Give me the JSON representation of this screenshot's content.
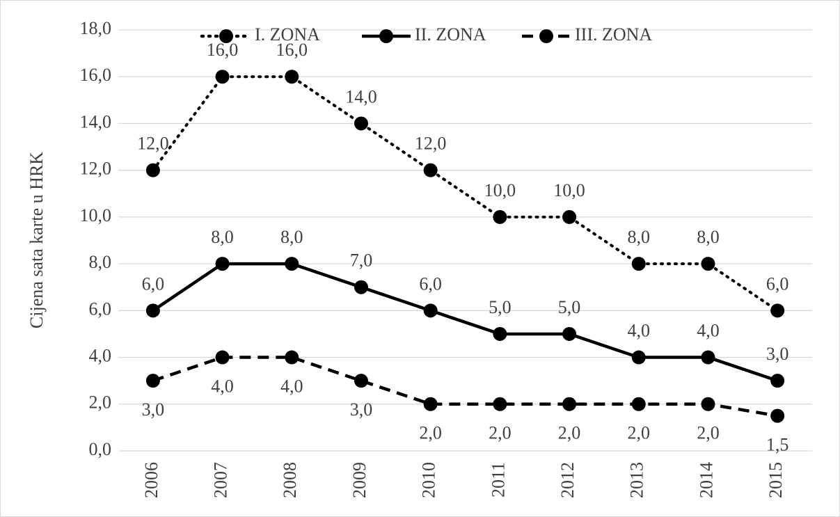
{
  "chart_data": {
    "type": "line",
    "ylabel": "Cijena sata karte u HRK",
    "categories": [
      "2006",
      "2007",
      "2008",
      "2009",
      "2010",
      "2011",
      "2012",
      "2013",
      "2014",
      "2015"
    ],
    "series": [
      {
        "name": "I. ZONA",
        "color": "#000000",
        "line_style": "dotted",
        "label_position": "above",
        "values": [
          12,
          16,
          16,
          14,
          12,
          10,
          10,
          8,
          8,
          6
        ],
        "value_labels": [
          "12,0",
          "16,0",
          "16,0",
          "14,0",
          "12,0",
          "10,0",
          "10,0",
          "8,0",
          "8,0",
          "6,0"
        ]
      },
      {
        "name": "II. ZONA",
        "color": "#000000",
        "line_style": "solid",
        "label_position": "above",
        "values": [
          6,
          8,
          8,
          7,
          6,
          5,
          5,
          4,
          4,
          3
        ],
        "value_labels": [
          "6,0",
          "8,0",
          "8,0",
          "7,0",
          "6,0",
          "5,0",
          "5,0",
          "4,0",
          "4,0",
          "3,0"
        ]
      },
      {
        "name": "III. ZONA",
        "color": "#000000",
        "line_style": "dashed",
        "label_position": "below",
        "values": [
          3,
          4,
          4,
          3,
          2,
          2,
          2,
          2,
          2,
          1.5
        ],
        "value_labels": [
          "3,0",
          "4,0",
          "4,0",
          "3,0",
          "2,0",
          "2,0",
          "2,0",
          "2,0",
          "2,0",
          "1,5"
        ]
      }
    ],
    "ylim": [
      0,
      18
    ],
    "yticks": [
      {
        "value": 0,
        "label": "0,0"
      },
      {
        "value": 2,
        "label": "2,0"
      },
      {
        "value": 4,
        "label": "4,0"
      },
      {
        "value": 6,
        "label": "6,0"
      },
      {
        "value": 8,
        "label": "8,0"
      },
      {
        "value": 10,
        "label": "10,0"
      },
      {
        "value": 12,
        "label": "12,0"
      },
      {
        "value": 14,
        "label": "14,0"
      },
      {
        "value": 16,
        "label": "16,0"
      },
      {
        "value": 18,
        "label": "18,0"
      }
    ],
    "grid": true,
    "legend": "top"
  }
}
